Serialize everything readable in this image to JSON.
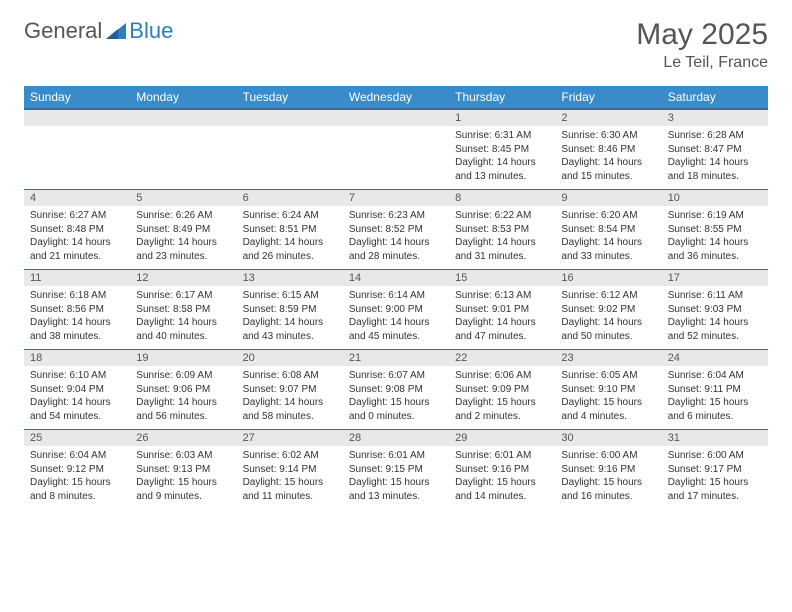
{
  "brand": {
    "part1": "General",
    "part2": "Blue"
  },
  "title": "May 2025",
  "location": "Le Teil, France",
  "colors": {
    "header_bg": "#3a8bc9",
    "header_border": "#2d6fa3",
    "daynum_bg": "#e8e8e8",
    "text": "#333333",
    "muted": "#555555",
    "brand_blue": "#2d7dc0",
    "background": "#ffffff"
  },
  "typography": {
    "title_fontsize": 30,
    "location_fontsize": 16,
    "dayheader_fontsize": 12,
    "daynum_fontsize": 11,
    "daybody_fontsize": 10
  },
  "day_headers": [
    "Sunday",
    "Monday",
    "Tuesday",
    "Wednesday",
    "Thursday",
    "Friday",
    "Saturday"
  ],
  "weeks": [
    [
      {
        "num": "",
        "lines": []
      },
      {
        "num": "",
        "lines": []
      },
      {
        "num": "",
        "lines": []
      },
      {
        "num": "",
        "lines": []
      },
      {
        "num": "1",
        "lines": [
          "Sunrise: 6:31 AM",
          "Sunset: 8:45 PM",
          "Daylight: 14 hours",
          "and 13 minutes."
        ]
      },
      {
        "num": "2",
        "lines": [
          "Sunrise: 6:30 AM",
          "Sunset: 8:46 PM",
          "Daylight: 14 hours",
          "and 15 minutes."
        ]
      },
      {
        "num": "3",
        "lines": [
          "Sunrise: 6:28 AM",
          "Sunset: 8:47 PM",
          "Daylight: 14 hours",
          "and 18 minutes."
        ]
      }
    ],
    [
      {
        "num": "4",
        "lines": [
          "Sunrise: 6:27 AM",
          "Sunset: 8:48 PM",
          "Daylight: 14 hours",
          "and 21 minutes."
        ]
      },
      {
        "num": "5",
        "lines": [
          "Sunrise: 6:26 AM",
          "Sunset: 8:49 PM",
          "Daylight: 14 hours",
          "and 23 minutes."
        ]
      },
      {
        "num": "6",
        "lines": [
          "Sunrise: 6:24 AM",
          "Sunset: 8:51 PM",
          "Daylight: 14 hours",
          "and 26 minutes."
        ]
      },
      {
        "num": "7",
        "lines": [
          "Sunrise: 6:23 AM",
          "Sunset: 8:52 PM",
          "Daylight: 14 hours",
          "and 28 minutes."
        ]
      },
      {
        "num": "8",
        "lines": [
          "Sunrise: 6:22 AM",
          "Sunset: 8:53 PM",
          "Daylight: 14 hours",
          "and 31 minutes."
        ]
      },
      {
        "num": "9",
        "lines": [
          "Sunrise: 6:20 AM",
          "Sunset: 8:54 PM",
          "Daylight: 14 hours",
          "and 33 minutes."
        ]
      },
      {
        "num": "10",
        "lines": [
          "Sunrise: 6:19 AM",
          "Sunset: 8:55 PM",
          "Daylight: 14 hours",
          "and 36 minutes."
        ]
      }
    ],
    [
      {
        "num": "11",
        "lines": [
          "Sunrise: 6:18 AM",
          "Sunset: 8:56 PM",
          "Daylight: 14 hours",
          "and 38 minutes."
        ]
      },
      {
        "num": "12",
        "lines": [
          "Sunrise: 6:17 AM",
          "Sunset: 8:58 PM",
          "Daylight: 14 hours",
          "and 40 minutes."
        ]
      },
      {
        "num": "13",
        "lines": [
          "Sunrise: 6:15 AM",
          "Sunset: 8:59 PM",
          "Daylight: 14 hours",
          "and 43 minutes."
        ]
      },
      {
        "num": "14",
        "lines": [
          "Sunrise: 6:14 AM",
          "Sunset: 9:00 PM",
          "Daylight: 14 hours",
          "and 45 minutes."
        ]
      },
      {
        "num": "15",
        "lines": [
          "Sunrise: 6:13 AM",
          "Sunset: 9:01 PM",
          "Daylight: 14 hours",
          "and 47 minutes."
        ]
      },
      {
        "num": "16",
        "lines": [
          "Sunrise: 6:12 AM",
          "Sunset: 9:02 PM",
          "Daylight: 14 hours",
          "and 50 minutes."
        ]
      },
      {
        "num": "17",
        "lines": [
          "Sunrise: 6:11 AM",
          "Sunset: 9:03 PM",
          "Daylight: 14 hours",
          "and 52 minutes."
        ]
      }
    ],
    [
      {
        "num": "18",
        "lines": [
          "Sunrise: 6:10 AM",
          "Sunset: 9:04 PM",
          "Daylight: 14 hours",
          "and 54 minutes."
        ]
      },
      {
        "num": "19",
        "lines": [
          "Sunrise: 6:09 AM",
          "Sunset: 9:06 PM",
          "Daylight: 14 hours",
          "and 56 minutes."
        ]
      },
      {
        "num": "20",
        "lines": [
          "Sunrise: 6:08 AM",
          "Sunset: 9:07 PM",
          "Daylight: 14 hours",
          "and 58 minutes."
        ]
      },
      {
        "num": "21",
        "lines": [
          "Sunrise: 6:07 AM",
          "Sunset: 9:08 PM",
          "Daylight: 15 hours",
          "and 0 minutes."
        ]
      },
      {
        "num": "22",
        "lines": [
          "Sunrise: 6:06 AM",
          "Sunset: 9:09 PM",
          "Daylight: 15 hours",
          "and 2 minutes."
        ]
      },
      {
        "num": "23",
        "lines": [
          "Sunrise: 6:05 AM",
          "Sunset: 9:10 PM",
          "Daylight: 15 hours",
          "and 4 minutes."
        ]
      },
      {
        "num": "24",
        "lines": [
          "Sunrise: 6:04 AM",
          "Sunset: 9:11 PM",
          "Daylight: 15 hours",
          "and 6 minutes."
        ]
      }
    ],
    [
      {
        "num": "25",
        "lines": [
          "Sunrise: 6:04 AM",
          "Sunset: 9:12 PM",
          "Daylight: 15 hours",
          "and 8 minutes."
        ]
      },
      {
        "num": "26",
        "lines": [
          "Sunrise: 6:03 AM",
          "Sunset: 9:13 PM",
          "Daylight: 15 hours",
          "and 9 minutes."
        ]
      },
      {
        "num": "27",
        "lines": [
          "Sunrise: 6:02 AM",
          "Sunset: 9:14 PM",
          "Daylight: 15 hours",
          "and 11 minutes."
        ]
      },
      {
        "num": "28",
        "lines": [
          "Sunrise: 6:01 AM",
          "Sunset: 9:15 PM",
          "Daylight: 15 hours",
          "and 13 minutes."
        ]
      },
      {
        "num": "29",
        "lines": [
          "Sunrise: 6:01 AM",
          "Sunset: 9:16 PM",
          "Daylight: 15 hours",
          "and 14 minutes."
        ]
      },
      {
        "num": "30",
        "lines": [
          "Sunrise: 6:00 AM",
          "Sunset: 9:16 PM",
          "Daylight: 15 hours",
          "and 16 minutes."
        ]
      },
      {
        "num": "31",
        "lines": [
          "Sunrise: 6:00 AM",
          "Sunset: 9:17 PM",
          "Daylight: 15 hours",
          "and 17 minutes."
        ]
      }
    ]
  ]
}
